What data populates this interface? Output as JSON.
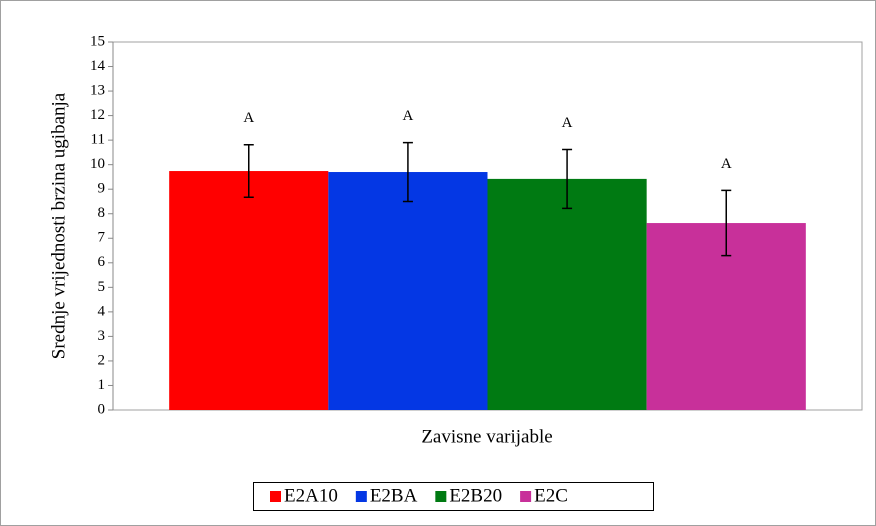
{
  "chart_data": {
    "type": "bar",
    "ylabel": "Srednje vrijednosti brzina ugibanja",
    "xlabel": "Zavisne varijable",
    "categories": [
      null
    ],
    "series": [
      {
        "name": "E2A10",
        "color": "#ff0000",
        "values": [
          9.74
        ],
        "errors": [
          1.07
        ],
        "annotations": [
          "A"
        ]
      },
      {
        "name": "E2BA",
        "color": "#0437e4",
        "values": [
          9.7
        ],
        "errors": [
          1.2
        ],
        "annotations": [
          "A"
        ]
      },
      {
        "name": "E2B20",
        "color": "#007a12",
        "values": [
          9.42
        ],
        "errors": [
          1.2
        ],
        "annotations": [
          "A"
        ]
      },
      {
        "name": "E2C",
        "color": "#c8309a",
        "values": [
          7.62
        ],
        "errors": [
          1.33
        ],
        "annotations": [
          "A"
        ]
      }
    ],
    "ylim": [
      0,
      15
    ],
    "yticks": [
      0,
      1,
      2,
      3,
      4,
      5,
      6,
      7,
      8,
      9,
      10,
      11,
      12,
      13,
      14,
      15
    ],
    "grid": false,
    "legend": "bottom"
  }
}
